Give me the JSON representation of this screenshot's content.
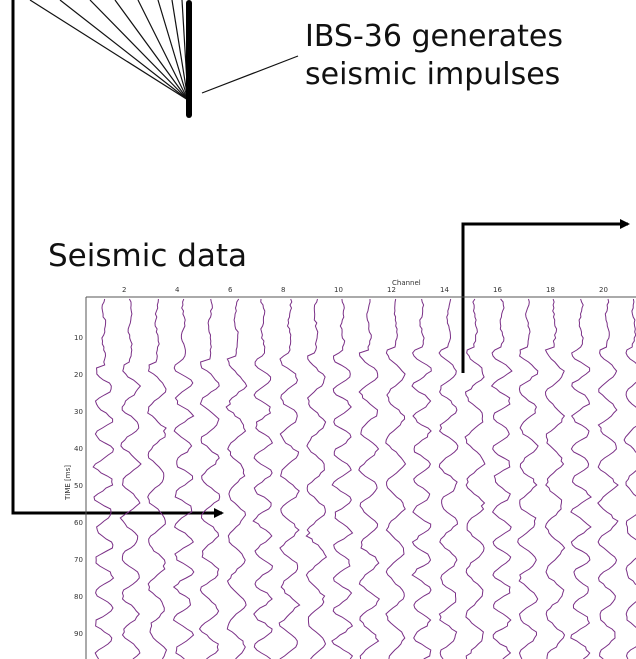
{
  "source": {
    "caption_line1": "IBS-36 generates",
    "caption_line2": "seismic impulses"
  },
  "seismic_panel": {
    "title": "Seismic data",
    "axis_top_label": "Channel",
    "axis_left_label": "TIME [ms]",
    "top_ticks": [
      "2",
      "4",
      "6",
      "8",
      "10",
      "12",
      "14",
      "16",
      "18",
      "20"
    ],
    "left_ticks": [
      "10",
      "20",
      "30",
      "40",
      "50",
      "60",
      "70",
      "80",
      "90"
    ]
  },
  "colors": {
    "trace": "#7a2f86",
    "arrow": "#000000",
    "axis": "#555555"
  }
}
